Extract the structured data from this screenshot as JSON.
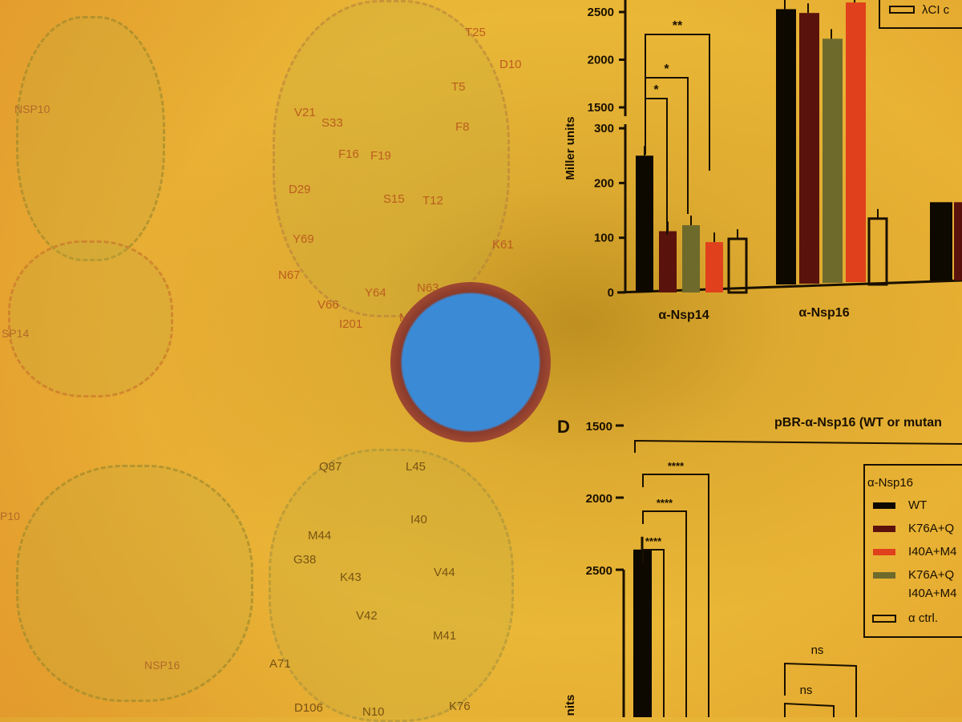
{
  "structures": {
    "top_left_labels": [
      "NSP10",
      "SP14"
    ],
    "bottom_left_labels": [
      "P10",
      "NSP16"
    ],
    "top_residues": [
      "T25",
      "D10",
      "T5",
      "F8",
      "V21",
      "S33",
      "F16",
      "F19",
      "D29",
      "S15",
      "T12",
      "Y69",
      "K61",
      "N67",
      "V66",
      "Y64",
      "N63",
      "I201",
      "M62"
    ],
    "bottom_residues": [
      "Q87",
      "L45",
      "M44",
      "I40",
      "G38",
      "K43",
      "V44",
      "V42",
      "A71",
      "M41",
      "D106",
      "N10",
      "K76"
    ]
  },
  "chart_data": [
    {
      "type": "bar",
      "title": "",
      "ylabel": "Miller units",
      "y_break": [
        300,
        1500
      ],
      "yticks": [
        "0",
        "100",
        "200",
        "300",
        "1500",
        "2000",
        "2500"
      ],
      "categories": [
        "α-Nsp14",
        "α-Nsp16"
      ],
      "values": {
        "α-Nsp14": [
          250,
          112,
          123,
          92,
          98
        ],
        "α-Nsp16": [
          2530,
          2490,
          2220,
          2600,
          135
        ],
        "third_partial": [
          143,
          143
        ]
      },
      "significance": [
        "*",
        "*",
        "**"
      ],
      "legend_partial": "λCI c",
      "colors": [
        "#0d0800",
        "#5a120c",
        "#6e6a2c",
        "#e0401c",
        "#ffffff00"
      ]
    },
    {
      "type": "bar",
      "panel": "D",
      "title": "pBR-α-Nsp16 (WT or mutan",
      "ylabel": "nits",
      "yticks": [
        "2500",
        "2000",
        "1500"
      ],
      "values": {
        "WT": 2360
      },
      "significance": [
        "****",
        "****",
        "****",
        "ns",
        "ns"
      ],
      "legend": {
        "title": "α-Nsp16",
        "items": [
          "WT",
          "K76A+Q",
          "I40A+M4",
          "K76A+Q\nI40A+M4",
          "α ctrl."
        ]
      },
      "colors": [
        "#0d0800",
        "#5a120c",
        "#e0401c",
        "#6e6a2c",
        "#ffffff00"
      ]
    }
  ]
}
